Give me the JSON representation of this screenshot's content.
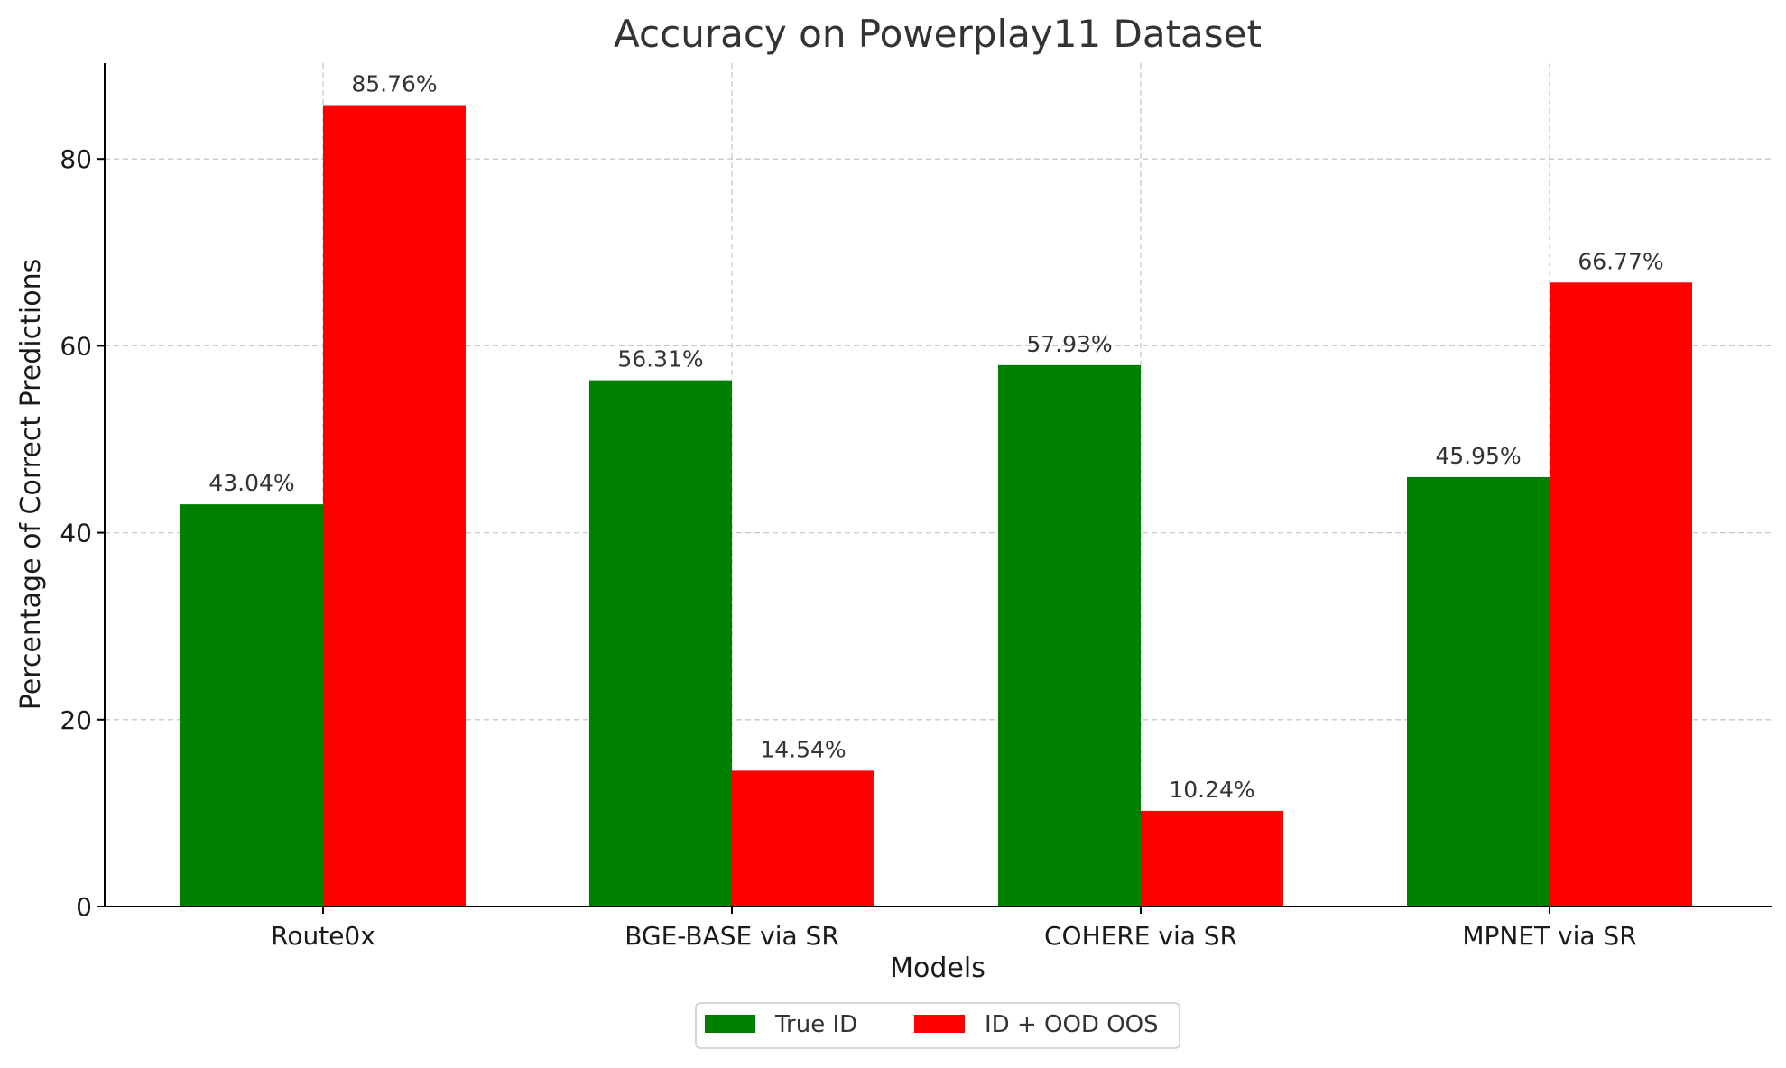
{
  "chart_data": {
    "type": "bar",
    "title": "Accuracy on Powerplay11 Dataset",
    "xlabel": "Models",
    "ylabel": "Percentage of Correct Predictions",
    "categories": [
      "Route0x",
      "BGE-BASE via SR",
      "COHERE via SR",
      "MPNET via SR"
    ],
    "series": [
      {
        "name": "True ID",
        "color": "#008000",
        "values": [
          43.04,
          56.31,
          57.93,
          45.95
        ],
        "labels": [
          "43.04%",
          "56.31%",
          "57.93%",
          "45.95%"
        ]
      },
      {
        "name": "ID + OOD OOS",
        "color": "#ff0000",
        "values": [
          85.76,
          14.54,
          10.24,
          66.77
        ],
        "labels": [
          "85.76%",
          "14.54%",
          "10.24%",
          "66.77%"
        ]
      }
    ],
    "ylim": [
      0,
      90
    ],
    "yticks": [
      0,
      20,
      40,
      60,
      80
    ],
    "ytick_labels": [
      "0",
      "20",
      "40",
      "60",
      "80"
    ],
    "grid": true,
    "legend_position": "bottom-center"
  }
}
